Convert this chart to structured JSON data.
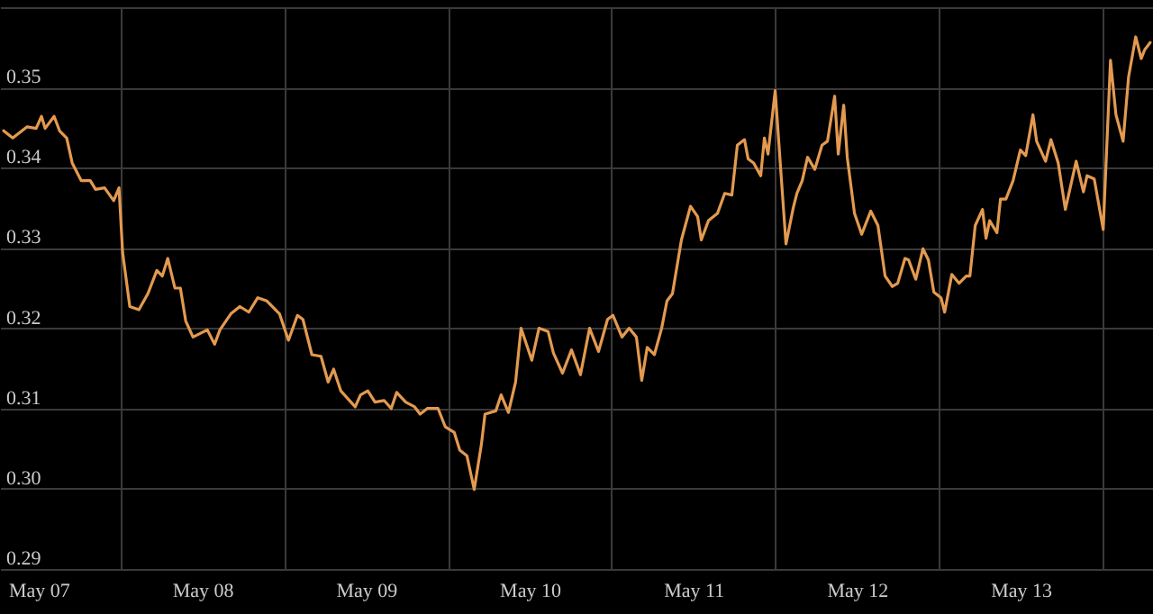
{
  "chart_data": {
    "type": "line",
    "color": "#e39a50",
    "grid": true,
    "xlim": [
      "--05-07T06:20",
      "--05-14T07:24"
    ],
    "ylim": [
      0.29,
      0.36
    ],
    "yticks": [
      {
        "value": 0.29,
        "label": "0.29"
      },
      {
        "value": 0.3,
        "label": "0.30"
      },
      {
        "value": 0.31,
        "label": "0.31"
      },
      {
        "value": 0.32,
        "label": "0.32"
      },
      {
        "value": 0.33,
        "label": "0.33"
      },
      {
        "value": 0.34,
        "label": "0.34"
      },
      {
        "value": 0.35,
        "label": "0.35"
      },
      {
        "value": 0.36,
        "label": null
      }
    ],
    "xticks": [
      {
        "value": "--05-07T12:00",
        "label": "May 07"
      },
      {
        "value": "--05-08T12:00",
        "label": "May 08"
      },
      {
        "value": "--05-09T12:00",
        "label": "May 09"
      },
      {
        "value": "--05-10T12:00",
        "label": "May 10"
      },
      {
        "value": "--05-11T12:00",
        "label": "May 11"
      },
      {
        "value": "--05-12T12:00",
        "label": "May 12"
      },
      {
        "value": "--05-13T12:00",
        "label": "May 13"
      },
      {
        "value": "--05-08T00:00",
        "label": null
      },
      {
        "value": "--05-09T00:00",
        "label": null
      },
      {
        "value": "--05-10T00:00",
        "label": null
      },
      {
        "value": "--05-11T00:00",
        "label": null
      },
      {
        "value": "--05-12T00:00",
        "label": null
      },
      {
        "value": "--05-13T00:00",
        "label": null
      },
      {
        "value": "--05-14T00:00",
        "label": null
      }
    ],
    "x": [
      "--05-07T06:52",
      "--05-07T08:12",
      "--05-07T10:19",
      "--05-07T11:38",
      "--05-07T12:25",
      "--05-07T12:57",
      "--05-07T14:16",
      "--05-07T15:04",
      "--05-07T16:07",
      "--05-07T16:55",
      "--05-07T18:14",
      "--05-07T19:34",
      "--05-07T20:21",
      "--05-07T21:40",
      "--05-07T23:00",
      "--05-07T23:47",
      "--05-08T00:19",
      "--05-08T01:22",
      "--05-08T02:42",
      "--05-08T04:01",
      "--05-08T05:20",
      "--05-08T06:08",
      "--05-08T06:56",
      "--05-08T07:59",
      "--05-08T08:47",
      "--05-08T09:34",
      "--05-08T10:38",
      "--05-08T12:44",
      "--05-08T13:48",
      "--05-08T14:35",
      "--05-08T16:11",
      "--05-08T17:30",
      "--05-08T18:49",
      "--05-08T20:08",
      "--05-08T21:28",
      "--05-08T23:19",
      "--05-09T00:38",
      "--05-09T01:57",
      "--05-09T02:45",
      "--05-09T04:04",
      "--05-09T05:24",
      "--05-09T06:27",
      "--05-09T07:15",
      "--05-09T08:18",
      "--05-09T10:25",
      "--05-09T11:12",
      "--05-09T12:16",
      "--05-09T13:19",
      "--05-09T14:39",
      "--05-09T15:42",
      "--05-09T16:30",
      "--05-09T17:49",
      "--05-09T19:08",
      "--05-09T19:56",
      "--05-09T20:59",
      "--05-09T22:34",
      "--05-09T23:38",
      "--05-10T00:57",
      "--05-10T01:45",
      "--05-10T02:48",
      "--05-10T03:52",
      "--05-10T04:55",
      "--05-10T05:27",
      "--05-10T07:02",
      "--05-10T07:49",
      "--05-10T08:53",
      "--05-10T09:56",
      "--05-10T10:44",
      "--05-10T12:19",
      "--05-10T13:22",
      "--05-10T14:42",
      "--05-10T15:29",
      "--05-10T16:49",
      "--05-10T18:08",
      "--05-10T19:27",
      "--05-10T20:47",
      "--05-10T22:06",
      "--05-10T23:25",
      "--05-11T00:13",
      "--05-11T01:32",
      "--05-11T02:35",
      "--05-11T03:39",
      "--05-11T04:26",
      "--05-11T05:14",
      "--05-11T06:17",
      "--05-11T07:21",
      "--05-11T08:08",
      "--05-11T08:56",
      "--05-11T10:15",
      "--05-11T11:35",
      "--05-11T12:38",
      "--05-11T13:10",
      "--05-11T14:13",
      "--05-11T15:32",
      "--05-11T16:36",
      "--05-11T17:39",
      "--05-11T18:27",
      "--05-11T19:30",
      "--05-11T20:02",
      "--05-11T20:50",
      "--05-11T21:53",
      "--05-11T22:25",
      "--05-11T22:57",
      "--05-12T00:00",
      "--05-12T00:48",
      "--05-12T01:35",
      "--05-12T02:39",
      "--05-12T03:11",
      "--05-12T03:58",
      "--05-12T04:45",
      "--05-12T05:49",
      "--05-12T06:52",
      "--05-12T07:40",
      "--05-12T08:43",
      "--05-12T09:15",
      "--05-12T10:03",
      "--05-12T10:34",
      "--05-12T11:38",
      "--05-12T12:41",
      "--05-12T14:01",
      "--05-12T15:04",
      "--05-12T16:07",
      "--05-12T17:11",
      "--05-12T17:58",
      "--05-12T19:02",
      "--05-12T19:34",
      "--05-12T20:37",
      "--05-12T21:40",
      "--05-12T22:28",
      "--05-12T23:16",
      "--05-13T00:19",
      "--05-13T00:51",
      "--05-13T01:54",
      "--05-13T02:58",
      "--05-13T04:01",
      "--05-13T04:33",
      "--05-13T05:20",
      "--05-13T06:24",
      "--05-13T06:55",
      "--05-13T07:27",
      "--05-13T08:31",
      "--05-13T09:02",
      "--05-13T09:50",
      "--05-13T10:53",
      "--05-13T11:57",
      "--05-13T12:44",
      "--05-13T13:48",
      "--05-13T14:20",
      "--05-13T15:39",
      "--05-13T16:26",
      "--05-13T17:30",
      "--05-13T18:33",
      "--05-13T20:08",
      "--05-13T21:12",
      "--05-13T21:44",
      "--05-13T22:47",
      "--05-14T00:06",
      "--05-14T01:10",
      "--05-14T01:58",
      "--05-14T03:01",
      "--05-14T03:49",
      "--05-14T04:52",
      "--05-14T05:40",
      "--05-14T06:11",
      "--05-14T06:59"
    ],
    "values": [
      0.3446,
      0.3437,
      0.3451,
      0.3449,
      0.3464,
      0.3449,
      0.3464,
      0.3446,
      0.3437,
      0.3406,
      0.3384,
      0.3384,
      0.3373,
      0.3375,
      0.3359,
      0.3375,
      0.3294,
      0.3227,
      0.3223,
      0.3243,
      0.3272,
      0.3265,
      0.3287,
      0.325,
      0.325,
      0.3209,
      0.3189,
      0.3198,
      0.318,
      0.3198,
      0.3218,
      0.3227,
      0.322,
      0.3238,
      0.3234,
      0.3218,
      0.3185,
      0.3216,
      0.3211,
      0.3167,
      0.3165,
      0.3133,
      0.3149,
      0.3122,
      0.3102,
      0.3117,
      0.3122,
      0.3108,
      0.311,
      0.31,
      0.312,
      0.3108,
      0.3102,
      0.3093,
      0.31,
      0.31,
      0.3077,
      0.307,
      0.3048,
      0.3041,
      0.2999,
      0.3055,
      0.3093,
      0.3097,
      0.3117,
      0.3095,
      0.3133,
      0.32,
      0.316,
      0.32,
      0.3196,
      0.3169,
      0.3144,
      0.3173,
      0.3142,
      0.32,
      0.3171,
      0.3211,
      0.3216,
      0.3189,
      0.32,
      0.3189,
      0.3135,
      0.3176,
      0.3167,
      0.32,
      0.3234,
      0.3243,
      0.331,
      0.3352,
      0.3339,
      0.331,
      0.3334,
      0.3343,
      0.3368,
      0.3366,
      0.3428,
      0.3435,
      0.3411,
      0.3406,
      0.339,
      0.3437,
      0.3417,
      0.3496,
      0.3399,
      0.3305,
      0.335,
      0.3368,
      0.3384,
      0.3413,
      0.3398,
      0.3428,
      0.3433,
      0.3489,
      0.3417,
      0.3478,
      0.3413,
      0.3343,
      0.3317,
      0.3346,
      0.3328,
      0.3265,
      0.3252,
      0.3256,
      0.3287,
      0.3285,
      0.3261,
      0.3299,
      0.3285,
      0.3245,
      0.3238,
      0.322,
      0.3267,
      0.3256,
      0.3265,
      0.3265,
      0.3328,
      0.3348,
      0.3312,
      0.3334,
      0.3319,
      0.3361,
      0.3361,
      0.3384,
      0.3422,
      0.3415,
      0.3466,
      0.3433,
      0.3408,
      0.3435,
      0.3406,
      0.3348,
      0.3408,
      0.337,
      0.339,
      0.3386,
      0.3323,
      0.3534,
      0.3466,
      0.3433,
      0.3513,
      0.3563,
      0.3536,
      0.3547,
      0.3556
    ]
  }
}
